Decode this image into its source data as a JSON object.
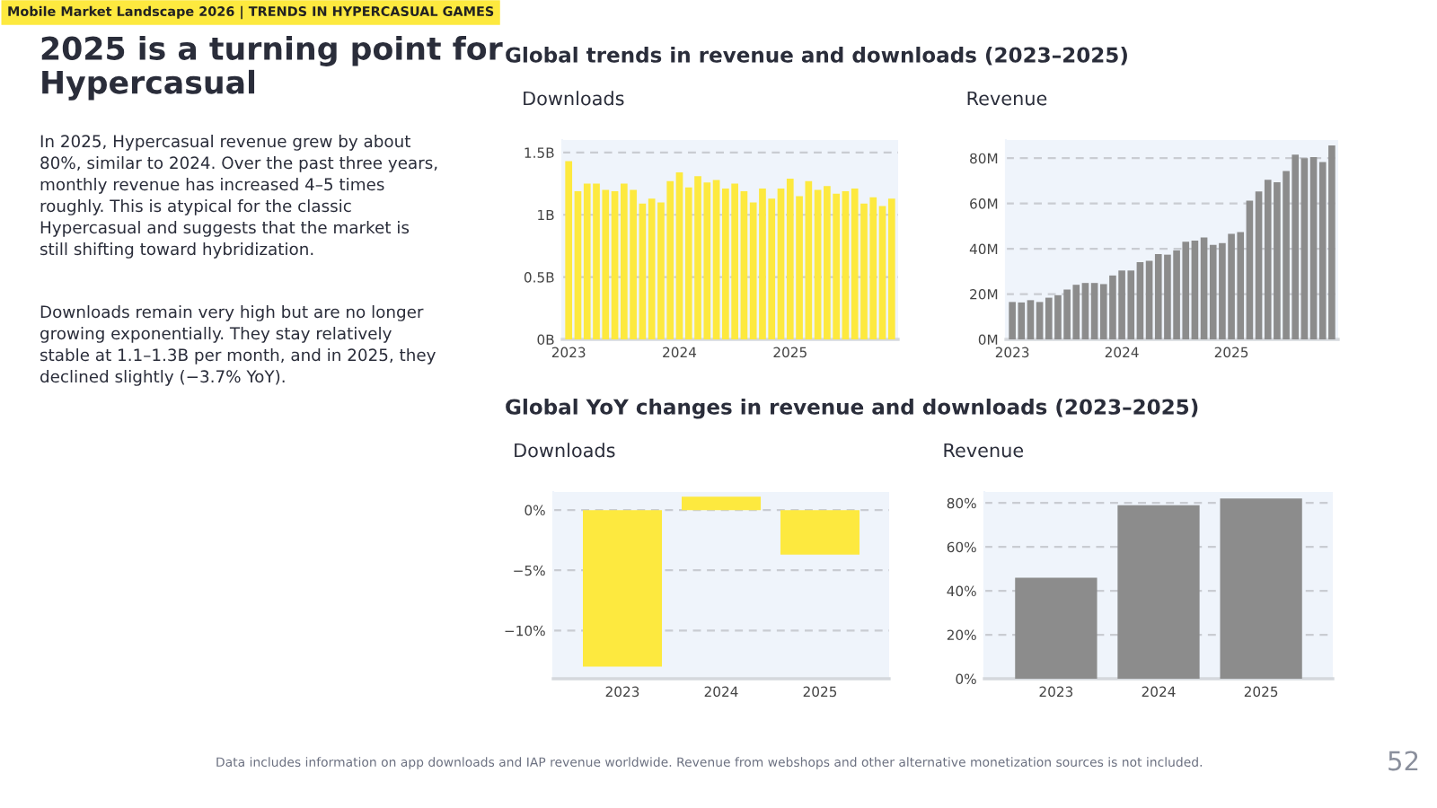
{
  "chart_data": [
    {
      "type": "bar",
      "title": "Downloads",
      "categories": [
        "2023",
        null,
        null,
        null,
        null,
        null,
        null,
        null,
        null,
        null,
        null,
        null,
        "2024",
        null,
        null,
        null,
        null,
        null,
        null,
        null,
        null,
        null,
        null,
        null,
        "2025",
        null,
        null,
        null,
        null,
        null,
        null,
        null,
        null,
        null,
        null,
        null
      ],
      "values": [
        1.43,
        1.19,
        1.25,
        1.25,
        1.2,
        1.19,
        1.25,
        1.2,
        1.09,
        1.13,
        1.1,
        1.27,
        1.34,
        1.22,
        1.31,
        1.26,
        1.28,
        1.21,
        1.25,
        1.19,
        1.1,
        1.21,
        1.13,
        1.21,
        1.29,
        1.15,
        1.27,
        1.2,
        1.23,
        1.17,
        1.19,
        1.21,
        1.09,
        1.14,
        1.07,
        1.13
      ],
      "color": "#fde93f",
      "ylim": [
        0,
        1.6
      ],
      "yticks": [
        {
          "value": 0,
          "label": "0B"
        },
        {
          "value": 0.5,
          "label": "0.5B"
        },
        {
          "value": 1,
          "label": "1B"
        },
        {
          "value": 1.5,
          "label": "1.5B"
        }
      ],
      "grid": "y",
      "annotations": [
        "Mobile Market Landscape 2026 | TRENDS IN HYPERCASUAL GAMES",
        "2025 is a turning point for\nHypercasual",
        "In 2025, Hypercasual revenue grew by about\n80%, similar to 2024. Over the past three years,\nmonthly revenue has increased 4–5 times\nroughly. This is atypical for the classic\nHypercasual and suggests that the market is\nstill shifting toward hybridization.",
        "Downloads remain very high but are no longer\ngrowing exponentially. They stay relatively\nstable at 1.1–1.3B per month, and in 2025, they\ndeclined slightly (−3.7% YoY).",
        "Global trends in revenue and downloads (2023–2025)"
      ]
    },
    {
      "type": "bar",
      "title": "Revenue",
      "categories": [
        "2023",
        null,
        null,
        null,
        null,
        null,
        null,
        null,
        null,
        null,
        null,
        null,
        "2024",
        null,
        null,
        null,
        null,
        null,
        null,
        null,
        null,
        null,
        null,
        null,
        "2025",
        null,
        null,
        null,
        null,
        null,
        null,
        null,
        null,
        null,
        null,
        null
      ],
      "values": [
        16.5,
        16.3,
        17.3,
        16.5,
        18.4,
        19.5,
        22,
        24.1,
        24.9,
        24.9,
        24.4,
        28.2,
        30.4,
        30.4,
        34.1,
        34.7,
        37.7,
        37.4,
        39.3,
        43.1,
        43.6,
        45,
        41.7,
        42.5,
        46.6,
        47.4,
        61.2,
        65.3,
        70.5,
        69.4,
        74.3,
        81.6,
        80,
        80.5,
        78.3,
        85.6
      ],
      "color": "#8c8c8c",
      "ylim": [
        0,
        88
      ],
      "yticks": [
        {
          "value": 0,
          "label": "0M"
        },
        {
          "value": 20,
          "label": "20M"
        },
        {
          "value": 40,
          "label": "40M"
        },
        {
          "value": 60,
          "label": "60M"
        },
        {
          "value": 80,
          "label": "80M"
        }
      ],
      "grid": "y"
    },
    {
      "type": "bar",
      "title": "Downloads",
      "categories": [
        "2023",
        "2024",
        "2025"
      ],
      "values": [
        -13.0,
        1.1,
        -3.7
      ],
      "color": "#fde93f",
      "ylim": [
        -14,
        1.5
      ],
      "yticks": [
        {
          "value": 0,
          "label": "0%"
        },
        {
          "value": -5,
          "label": "−5%"
        },
        {
          "value": -10,
          "label": "−10%"
        }
      ],
      "grid": "y",
      "annotations": [
        "Global YoY changes in revenue and downloads (2023–2025)"
      ]
    },
    {
      "type": "bar",
      "title": "Revenue",
      "categories": [
        "2023",
        "2024",
        "2025"
      ],
      "values": [
        46,
        79,
        82
      ],
      "color": "#8c8c8c",
      "ylim": [
        0,
        85
      ],
      "yticks": [
        {
          "value": 0,
          "label": "0%"
        },
        {
          "value": 20,
          "label": "20%"
        },
        {
          "value": 40,
          "label": "40%"
        },
        {
          "value": 60,
          "label": "60%"
        },
        {
          "value": 80,
          "label": "80%"
        }
      ],
      "grid": "y",
      "annotations": [
        "Data includes information on app downloads and IAP revenue worldwide. Revenue from webshops and other alternative monetization sources is not included.",
        "52"
      ]
    }
  ]
}
